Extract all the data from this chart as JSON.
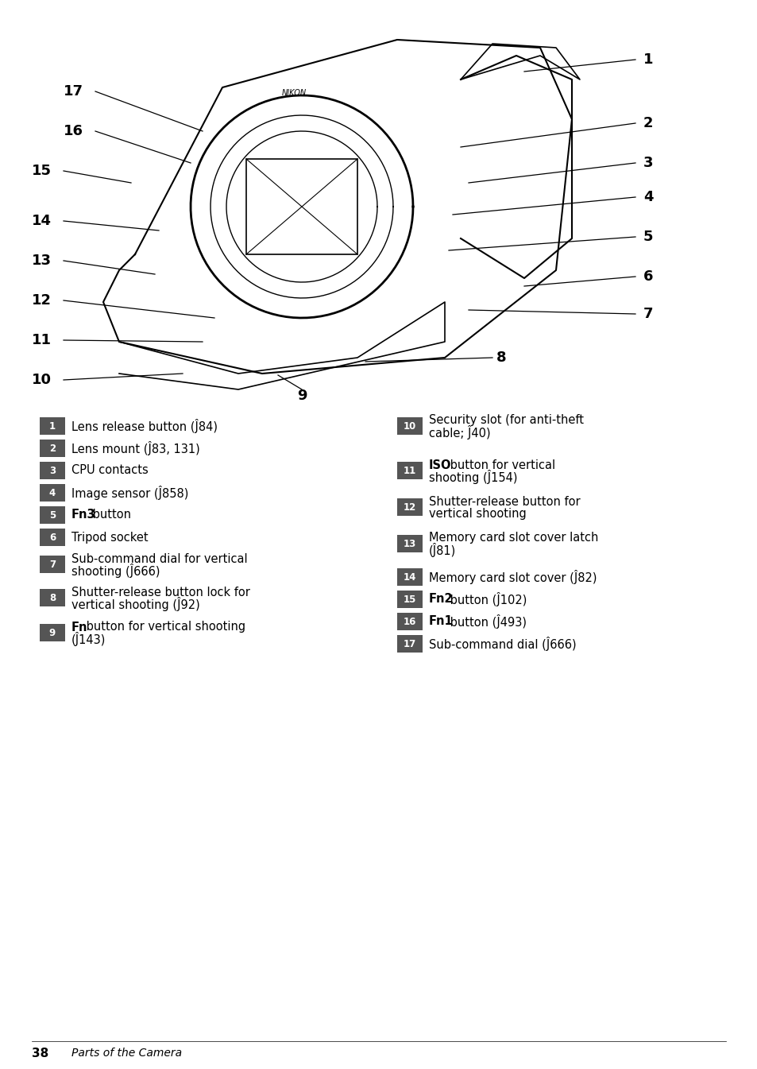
{
  "bg_color": "#ffffff",
  "page_number": "38",
  "page_label": "Parts of the Camera",
  "items_left": [
    {
      "num": "1",
      "bold_part": "",
      "text": "Lens release button (Ĵ84)"
    },
    {
      "num": "2",
      "bold_part": "",
      "text": "Lens mount (Ĵ83, 131)"
    },
    {
      "num": "3",
      "bold_part": "",
      "text": "CPU contacts"
    },
    {
      "num": "4",
      "bold_part": "",
      "text": "Image sensor (Ĵ858)"
    },
    {
      "num": "5",
      "bold_part": "Fn3",
      "text": " button"
    },
    {
      "num": "6",
      "bold_part": "",
      "text": "Tripod socket"
    },
    {
      "num": "7",
      "bold_part": "",
      "text": "Sub-command dial for vertical\nshooting (Ĵ666)"
    },
    {
      "num": "8",
      "bold_part": "",
      "text": "Shutter-release button lock for\nvertical shooting (Ĵ92)"
    },
    {
      "num": "9",
      "bold_part": "Fn",
      "text": " button for vertical shooting\n(Ĵ143)"
    }
  ],
  "items_right": [
    {
      "num": "10",
      "bold_part": "",
      "text": "Security slot (for anti-theft\ncable; Ĵ40)"
    },
    {
      "num": "11",
      "bold_part": "ISO",
      "text": " button for vertical\nshooting (Ĵ154)"
    },
    {
      "num": "12",
      "bold_part": "",
      "text": "Shutter-release button for\nvertical shooting"
    },
    {
      "num": "13",
      "bold_part": "",
      "text": "Memory card slot cover latch\n(Ĵ81)"
    },
    {
      "num": "14",
      "bold_part": "",
      "text": "Memory card slot cover (Ĵ82)"
    },
    {
      "num": "15",
      "bold_part": "Fn2",
      "text": " button (Ĵ102)"
    },
    {
      "num": "16",
      "bold_part": "Fn1",
      "text": " button (Ĵ493)"
    },
    {
      "num": "17",
      "bold_part": "",
      "text": "Sub-command dial (Ĵ666)"
    }
  ],
  "badge_color": "#555555",
  "badge_text_color": "#ffffff",
  "text_color": "#000000"
}
